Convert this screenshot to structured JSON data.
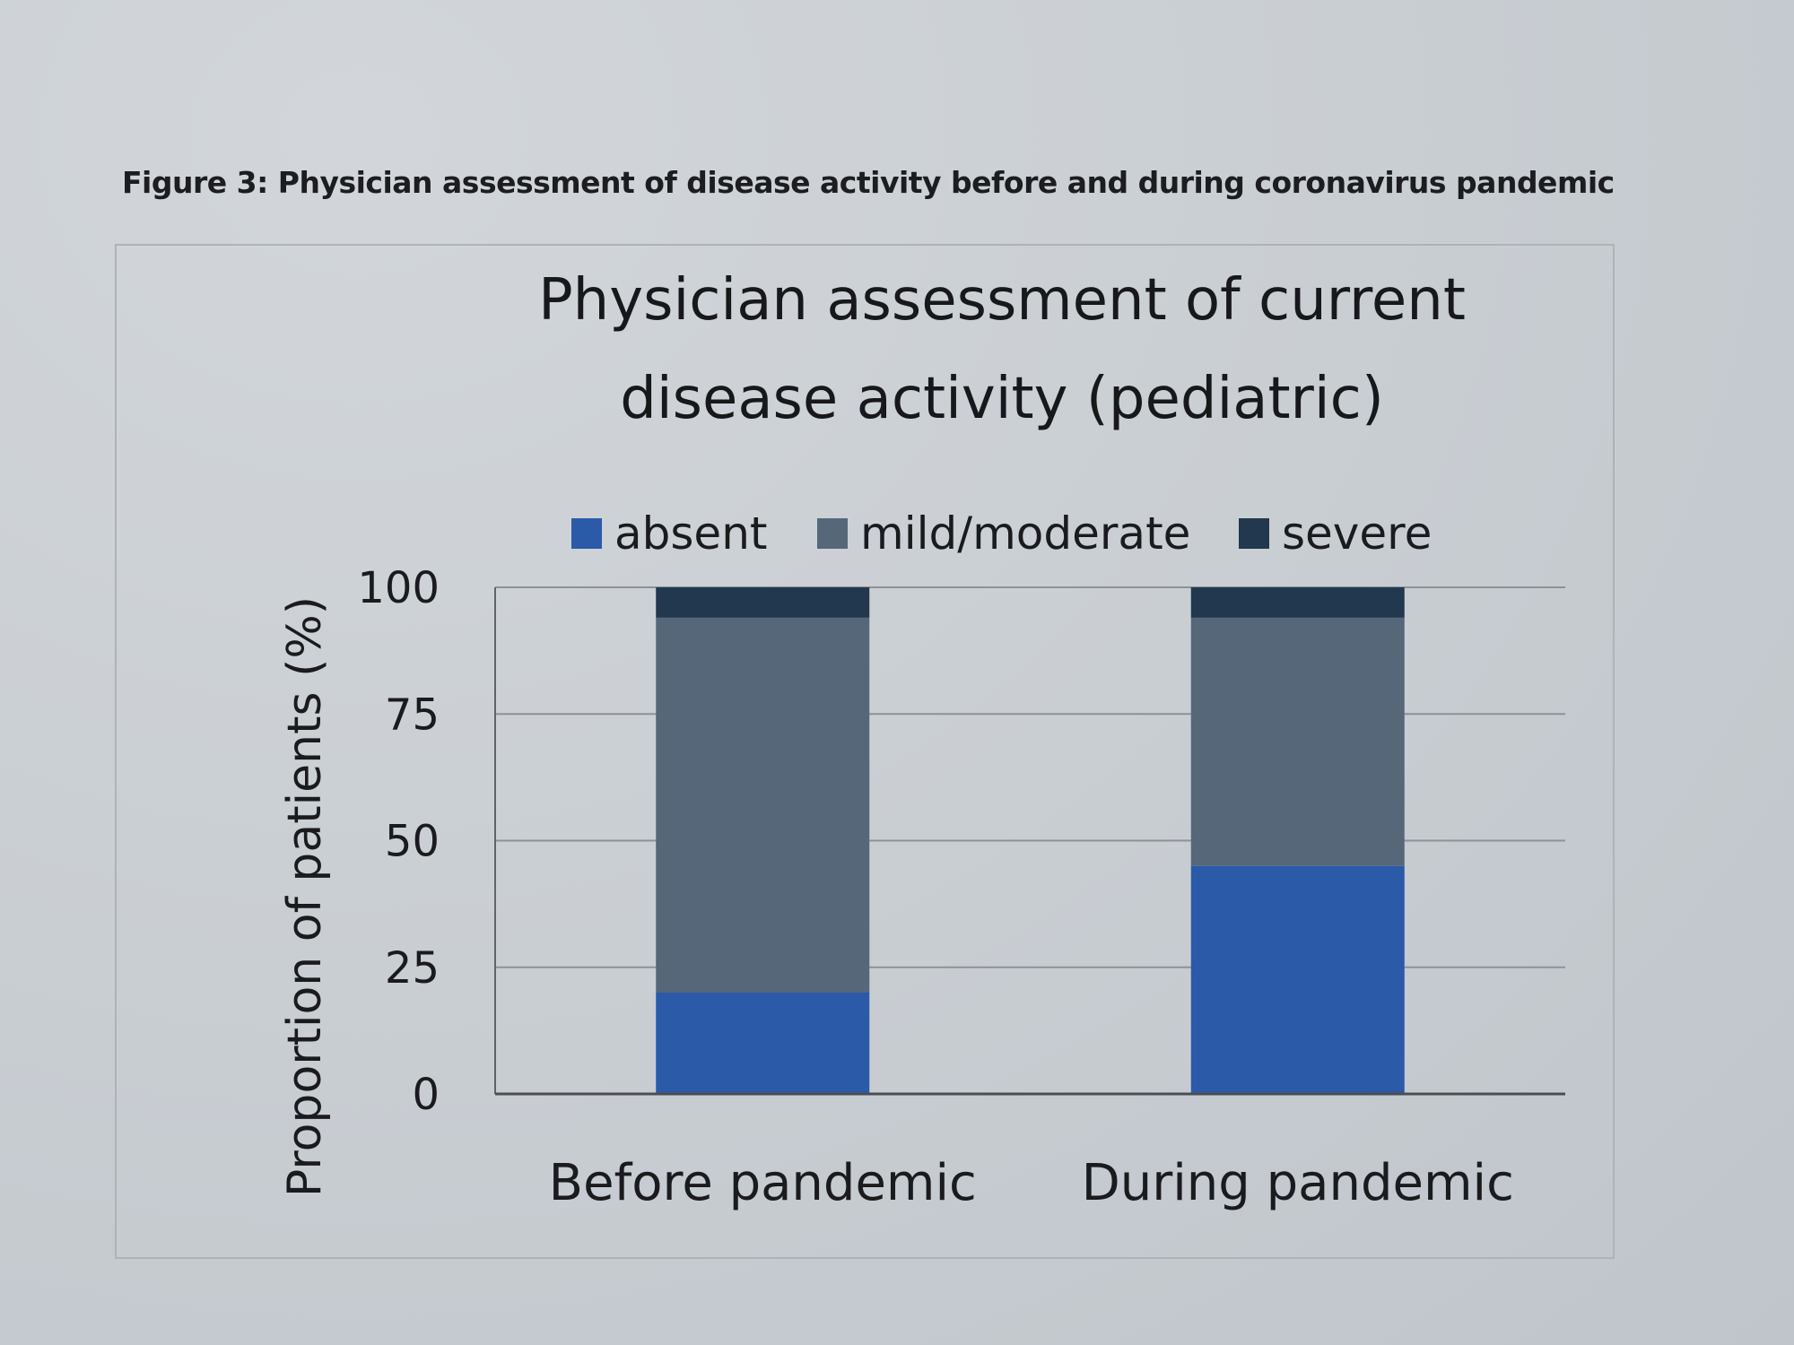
{
  "figure_caption": "Figure 3: Physician assessment of disease activity before and during coronavirus pandemic",
  "chart_data": {
    "type": "bar",
    "stacked": true,
    "title_lines": [
      "Physician assessment of current",
      "disease activity (pediatric)"
    ],
    "categories": [
      "Before pandemic",
      "During pandemic"
    ],
    "series": [
      {
        "name": "absent",
        "values": [
          20,
          45
        ],
        "color": "#2a5aa8"
      },
      {
        "name": "mild/moderate",
        "values": [
          74,
          49
        ],
        "color": "#56677a"
      },
      {
        "name": "severe",
        "values": [
          6,
          6
        ],
        "color": "#22384f"
      }
    ],
    "xlabel": "",
    "ylabel": "Proportion of patients (%)",
    "ylim": [
      0,
      100
    ],
    "yticks": [
      "0",
      "25",
      "50",
      "75",
      "100"
    ],
    "grid": true,
    "legend_position": "top"
  }
}
